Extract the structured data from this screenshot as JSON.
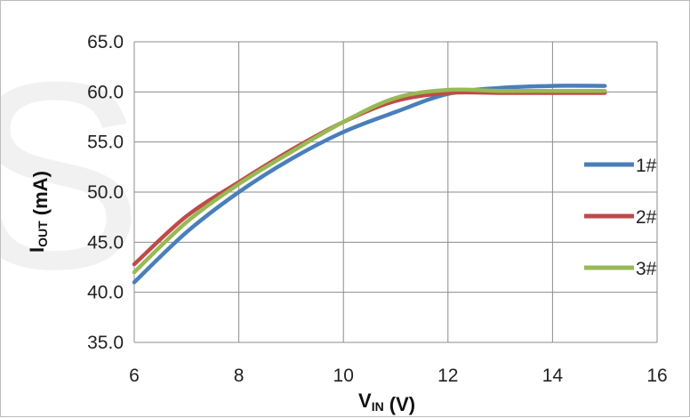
{
  "chart_data": {
    "type": "line",
    "title": "",
    "xlabel": "V",
    "xlabel_sub": "IN",
    "xlabel_unit": " (V)",
    "ylabel": "I",
    "ylabel_sub": "OUT",
    "ylabel_unit": " (mA)",
    "xlim": [
      6,
      16
    ],
    "ylim": [
      35,
      65
    ],
    "x_ticks": [
      "6",
      "8",
      "10",
      "12",
      "14",
      "16"
    ],
    "y_ticks": [
      "35.0",
      "40.0",
      "45.0",
      "50.0",
      "55.0",
      "60.0",
      "65.0"
    ],
    "grid": true,
    "legend_position": "right",
    "series": [
      {
        "name": "1#",
        "color": "#4a7ebb",
        "x": [
          6,
          7,
          8,
          9,
          10,
          11,
          12,
          13,
          14,
          15
        ],
        "y": [
          41.0,
          46.0,
          50.0,
          53.3,
          56.0,
          58.0,
          59.8,
          60.4,
          60.6,
          60.6
        ]
      },
      {
        "name": "2#",
        "color": "#be4b48",
        "x": [
          6,
          7,
          8,
          9,
          10,
          11,
          12,
          13,
          14,
          15
        ],
        "y": [
          42.8,
          47.6,
          51.0,
          54.2,
          57.0,
          59.1,
          59.9,
          59.9,
          59.9,
          59.9
        ]
      },
      {
        "name": "3#",
        "color": "#98b954",
        "x": [
          6,
          7,
          8,
          9,
          10,
          11,
          12,
          13,
          14,
          15
        ],
        "y": [
          42.0,
          47.0,
          50.8,
          54.0,
          57.0,
          59.4,
          60.2,
          60.1,
          60.1,
          60.1
        ]
      }
    ]
  }
}
